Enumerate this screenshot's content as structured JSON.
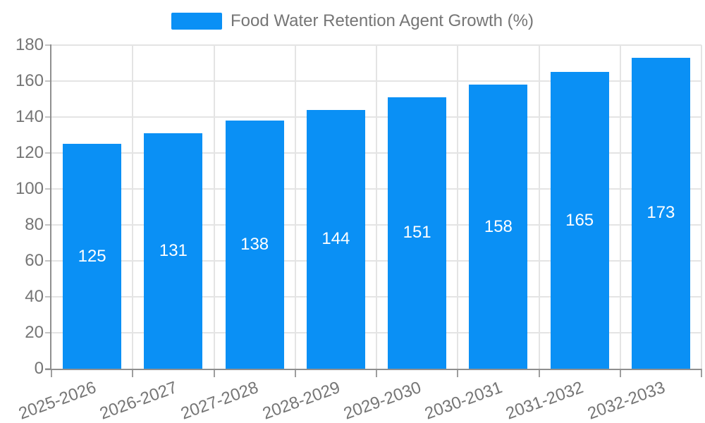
{
  "colors": {
    "bar": "#0A90F5",
    "grid": "#E4E4E4",
    "axis": "#8F8F8F",
    "y_tick": "#C4C4C4",
    "x_tick": "#9E9E9E",
    "tick_text": "#757575",
    "legend_text": "#757575",
    "value_label": "#FFFFFF",
    "background": "#FFFFFF"
  },
  "legend": {
    "label": "Food Water Retention Agent Growth (%)"
  },
  "chart_data": {
    "type": "bar",
    "title": "",
    "legend": "Food Water Retention Agent Growth (%)",
    "categories": [
      "2025-2026",
      "2026-2027",
      "2027-2028",
      "2028-2029",
      "2029-2030",
      "2030-2031",
      "2031-2032",
      "2032-2033"
    ],
    "values": [
      125,
      131,
      138,
      144,
      151,
      158,
      165,
      173
    ],
    "xlabel": "",
    "ylabel": "",
    "ylim": [
      0,
      180
    ],
    "ytick_step": 20,
    "yticks": [
      0,
      20,
      40,
      60,
      80,
      100,
      120,
      140,
      160,
      180
    ],
    "grid": true,
    "grid_vertical": true,
    "legend_position": "top-center",
    "x_label_rotation_deg": -20,
    "value_labels": "inside-center"
  }
}
